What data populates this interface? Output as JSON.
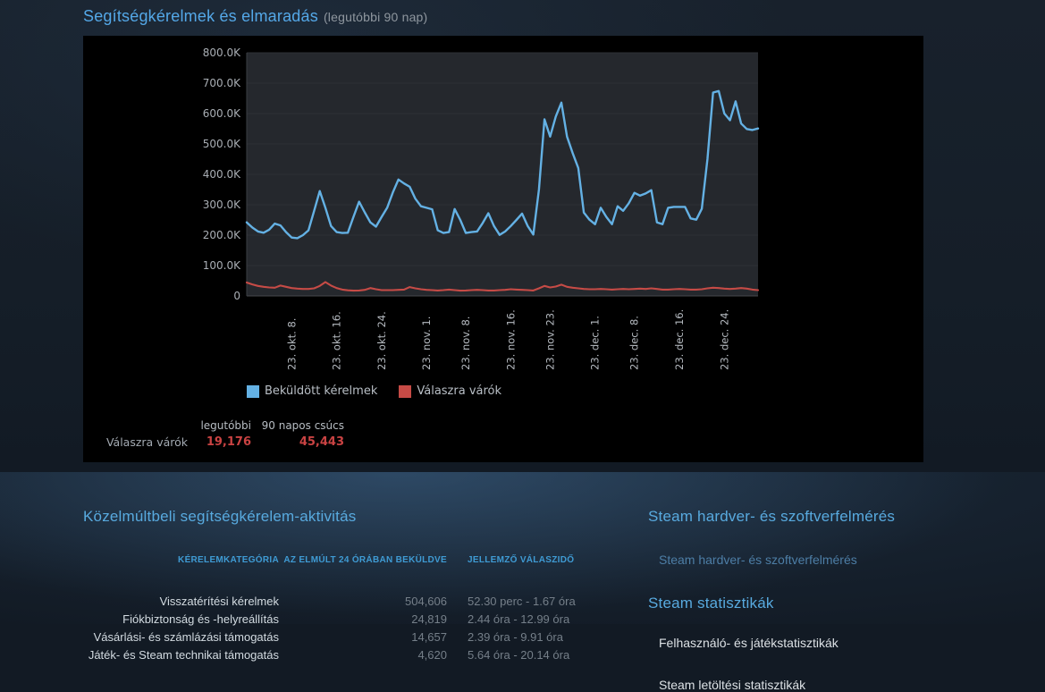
{
  "page": {
    "title": "Segítségkérelmek és elmaradás",
    "title_suffix": "(legutóbbi 90 nap)"
  },
  "chart_data": {
    "type": "line",
    "title": "Segítségkérelmek és elmaradás (legutóbbi 90 nap)",
    "ylim": [
      0,
      800000
    ],
    "grid": true,
    "legend_position": "bottom",
    "plot_bg": "#25282d",
    "gridline_color": "#2d3135",
    "zeroline_color": "#46494d",
    "axis_text_color": "#a9aeb4",
    "xlabel_text_color": "#b4b9bf",
    "y_ticks": [
      {
        "label": "800.0K",
        "value": 800000
      },
      {
        "label": "700.0K",
        "value": 700000
      },
      {
        "label": "600.0K",
        "value": 600000
      },
      {
        "label": "500.0K",
        "value": 500000
      },
      {
        "label": "400.0K",
        "value": 400000
      },
      {
        "label": "300.0K",
        "value": 300000
      },
      {
        "label": "200.0K",
        "value": 200000
      },
      {
        "label": "100.0K",
        "value": 100000
      },
      {
        "label": "0",
        "value": 0
      }
    ],
    "days_total": 91,
    "x_ticks": [
      {
        "label": "23. okt. 8.",
        "day": 8
      },
      {
        "label": "23. okt. 16.",
        "day": 16
      },
      {
        "label": "23. okt. 24.",
        "day": 24
      },
      {
        "label": "23. nov. 1.",
        "day": 32
      },
      {
        "label": "23. nov. 8.",
        "day": 39
      },
      {
        "label": "23. nov. 16.",
        "day": 47
      },
      {
        "label": "23. nov. 23.",
        "day": 54
      },
      {
        "label": "23. dec. 1.",
        "day": 62
      },
      {
        "label": "23. dec. 8.",
        "day": 69
      },
      {
        "label": "23. dec. 16.",
        "day": 77
      },
      {
        "label": "23. dec. 24.",
        "day": 85
      }
    ],
    "series": [
      {
        "name": "Beküldött kérelmek",
        "color": "#64b1e4",
        "values": [
          242000,
          225000,
          212000,
          208000,
          218000,
          238000,
          232000,
          210000,
          192000,
          190000,
          200000,
          216000,
          280000,
          345000,
          290000,
          230000,
          210000,
          207000,
          208000,
          260000,
          310000,
          275000,
          242000,
          228000,
          260000,
          290000,
          340000,
          383000,
          370000,
          359000,
          320000,
          295000,
          290000,
          285000,
          216000,
          207000,
          210000,
          286000,
          250000,
          207000,
          210000,
          212000,
          240000,
          272000,
          230000,
          201000,
          212000,
          230000,
          250000,
          271000,
          230000,
          202000,
          350000,
          581000,
          524000,
          590000,
          636000,
          524000,
          470000,
          421000,
          274000,
          251000,
          236000,
          290000,
          260000,
          236000,
          295000,
          280000,
          305000,
          339000,
          330000,
          337000,
          348000,
          242000,
          236000,
          290000,
          293000,
          293000,
          293000,
          255000,
          251000,
          287000,
          450000,
          669000,
          674000,
          600000,
          578000,
          640000,
          567000,
          549000,
          546000,
          551000
        ]
      },
      {
        "name": "Válaszra várók",
        "color": "#c64b46",
        "values": [
          44000,
          38000,
          33000,
          30000,
          28000,
          27000,
          34000,
          30000,
          26000,
          24000,
          23000,
          23000,
          25000,
          33000,
          45443,
          34000,
          26000,
          21000,
          18500,
          17500,
          18000,
          20000,
          26000,
          22000,
          19000,
          19000,
          19000,
          20000,
          21000,
          29000,
          25000,
          22000,
          20000,
          19000,
          18000,
          19000,
          21000,
          19000,
          17500,
          18000,
          19000,
          20000,
          19000,
          18000,
          18000,
          19000,
          20000,
          22000,
          21000,
          20000,
          19000,
          18000,
          25000,
          33000,
          28000,
          31000,
          37000,
          30000,
          27000,
          25000,
          23000,
          22000,
          22000,
          23000,
          22000,
          21000,
          22000,
          23000,
          22000,
          23000,
          24000,
          23000,
          25000,
          23000,
          21000,
          21000,
          22000,
          23000,
          22000,
          21000,
          21000,
          22000,
          25000,
          27000,
          26000,
          24000,
          23000,
          24000,
          26000,
          24000,
          21000,
          19176
        ]
      }
    ]
  },
  "chart_stats": {
    "col1_header": "legutóbbi",
    "col2_header": "90 napos csúcs",
    "row_label": "Válaszra várók",
    "latest": "19,176",
    "peak_90d": "45,443",
    "value_color": "#ca4343"
  },
  "activity": {
    "heading": "Közelmúltbeli segítségkérelem-aktivitás",
    "headers": [
      "KÉRELEMKATEGÓRIA",
      "AZ ELMÚLT 24 ÓRÁBAN BEKÜLDVE",
      "JELLEMZŐ VÁLASZIDŐ"
    ],
    "rows": [
      {
        "category": "Visszatérítési kérelmek",
        "submitted": "504,606",
        "response_time": "52.30 perc - 1.67 óra"
      },
      {
        "category": "Fiókbiztonság és -helyreállítás",
        "submitted": "24,819",
        "response_time": "2.44 óra - 12.99 óra"
      },
      {
        "category": "Vásárlási- és számlázási támogatás",
        "submitted": "14,657",
        "response_time": "2.39 óra - 9.91 óra"
      },
      {
        "category": "Játék- és Steam technikai támogatás",
        "submitted": "4,620",
        "response_time": "5.64 óra - 20.14 óra"
      }
    ]
  },
  "sidebar": {
    "hardware": {
      "heading": "Steam hardver- és szoftverfelmérés",
      "links": [
        {
          "label": "Steam hardver- és szoftverfelmérés",
          "style": "blue"
        }
      ]
    },
    "stats": {
      "heading": "Steam statisztikák",
      "links": [
        {
          "label": "Felhasználó- és játékstatisztikák",
          "style": "white"
        },
        {
          "label": "Steam letöltési statisztikák",
          "style": "white"
        }
      ]
    }
  },
  "colors": {
    "page_title_blue": "#54a8e8",
    "section_heading_blue": "#58aadf",
    "table_header_blue": "#3f9bd4",
    "link_blue": "#4d7ea6",
    "link_white": "#dce1e5",
    "stat_value_red": "#ca4343",
    "panel_black": "#000000"
  }
}
